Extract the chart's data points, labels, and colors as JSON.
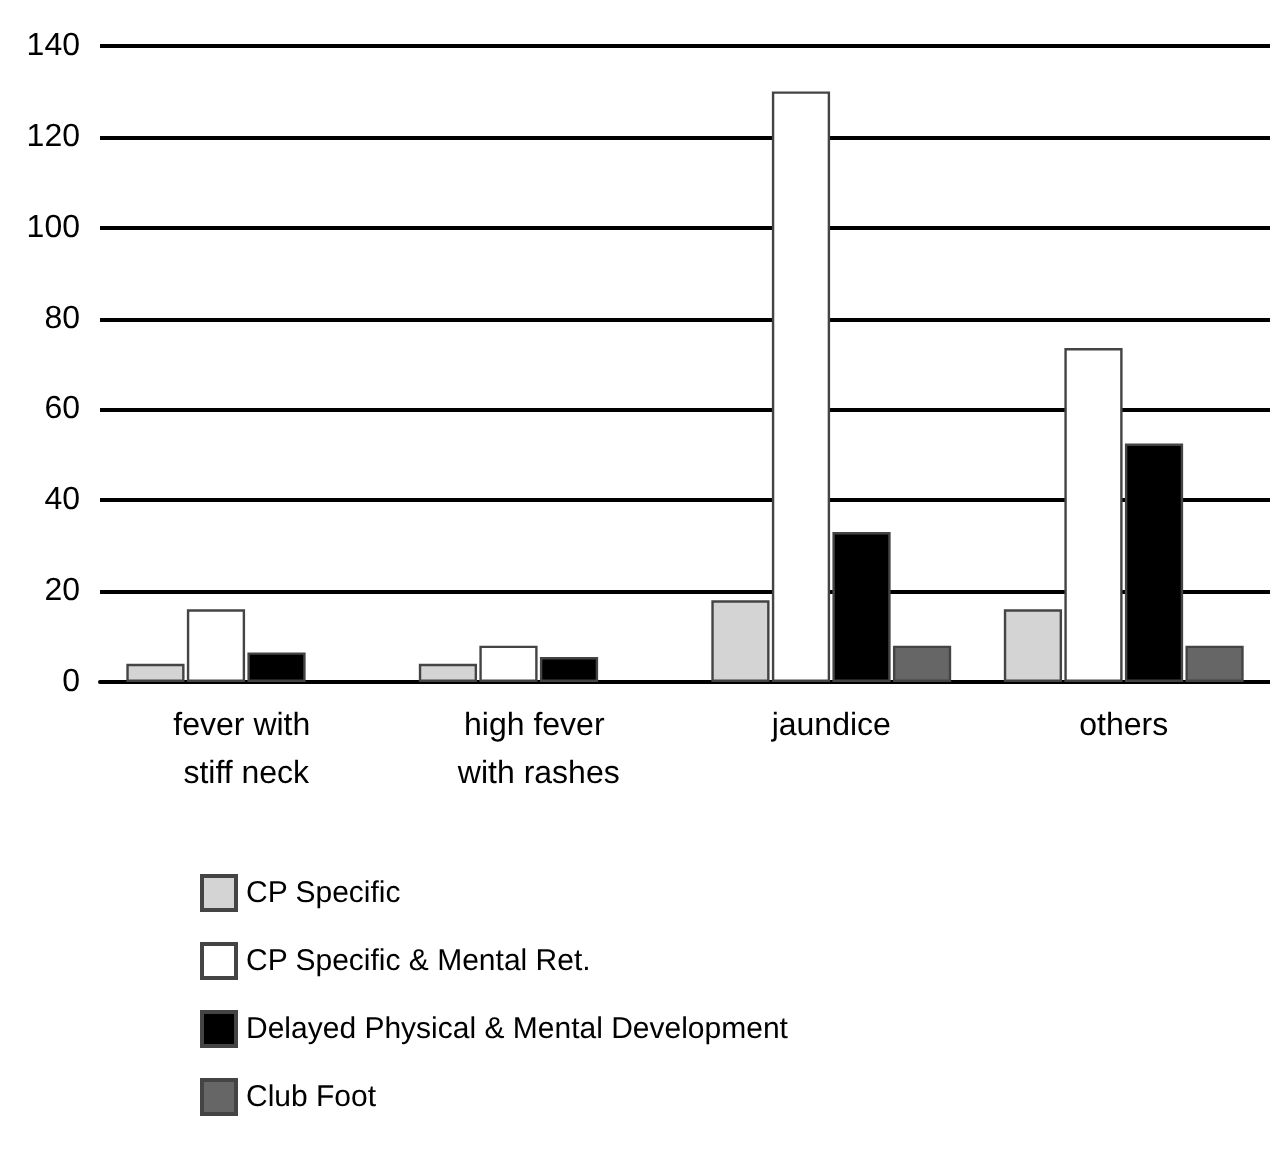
{
  "chart_data": {
    "type": "bar",
    "categories": [
      "fever with stiff neck",
      "high fever with rashes",
      "jaundice",
      "others"
    ],
    "series": [
      {
        "name": "CP Specific",
        "color": "#d4d4d4",
        "values": [
          4,
          4,
          18,
          16
        ]
      },
      {
        "name": "CP Specific & Mental Ret.",
        "color": "#ffffff",
        "values": [
          16,
          8,
          130,
          73.5
        ]
      },
      {
        "name": "Delayed Physical & Mental Development",
        "color": "#000000",
        "values": [
          6.5,
          5.5,
          33,
          52.5
        ]
      },
      {
        "name": "Club Foot",
        "color": "#666666",
        "values": [
          null,
          null,
          8,
          8
        ]
      }
    ],
    "ylim": [
      0,
      140
    ],
    "yticks": [
      0,
      20,
      40,
      60,
      80,
      100,
      120,
      140
    ],
    "grid": "y",
    "legend": "bottom"
  }
}
